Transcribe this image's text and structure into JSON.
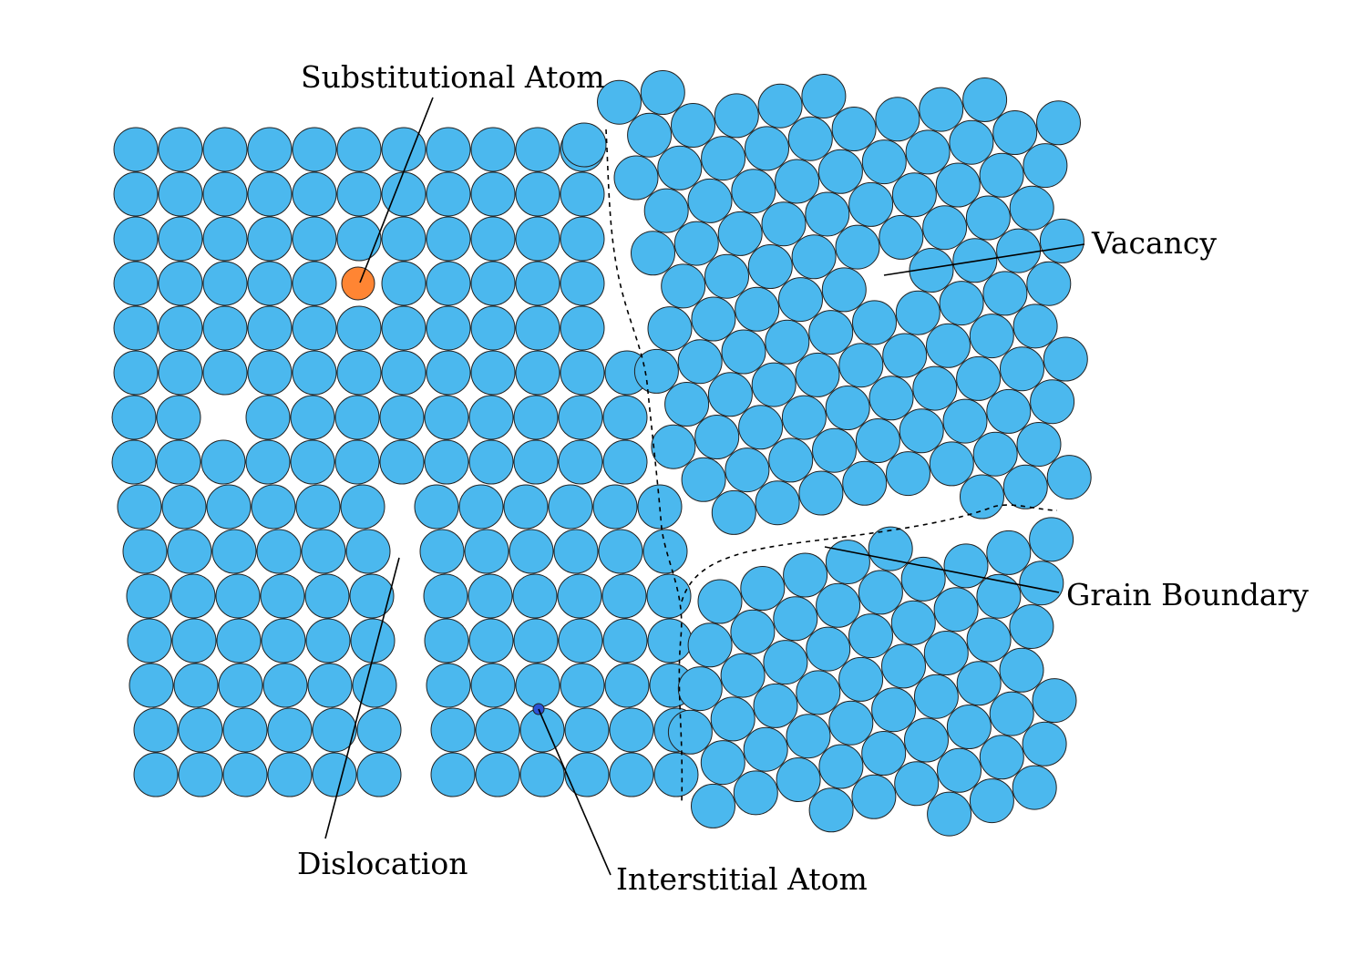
{
  "labels": {
    "substitutional": "Substitutional Atom",
    "vacancy": "Vacancy",
    "grain_boundary": "Grain Boundary",
    "dislocation": "Dislocation",
    "interstitial": "Interstitial Atom"
  },
  "colors": {
    "atom": "#4bb8ee",
    "substitutional": "#ff8533",
    "interstitial": "#2b54d6",
    "outline": "#222222",
    "background": "#ffffff"
  }
}
